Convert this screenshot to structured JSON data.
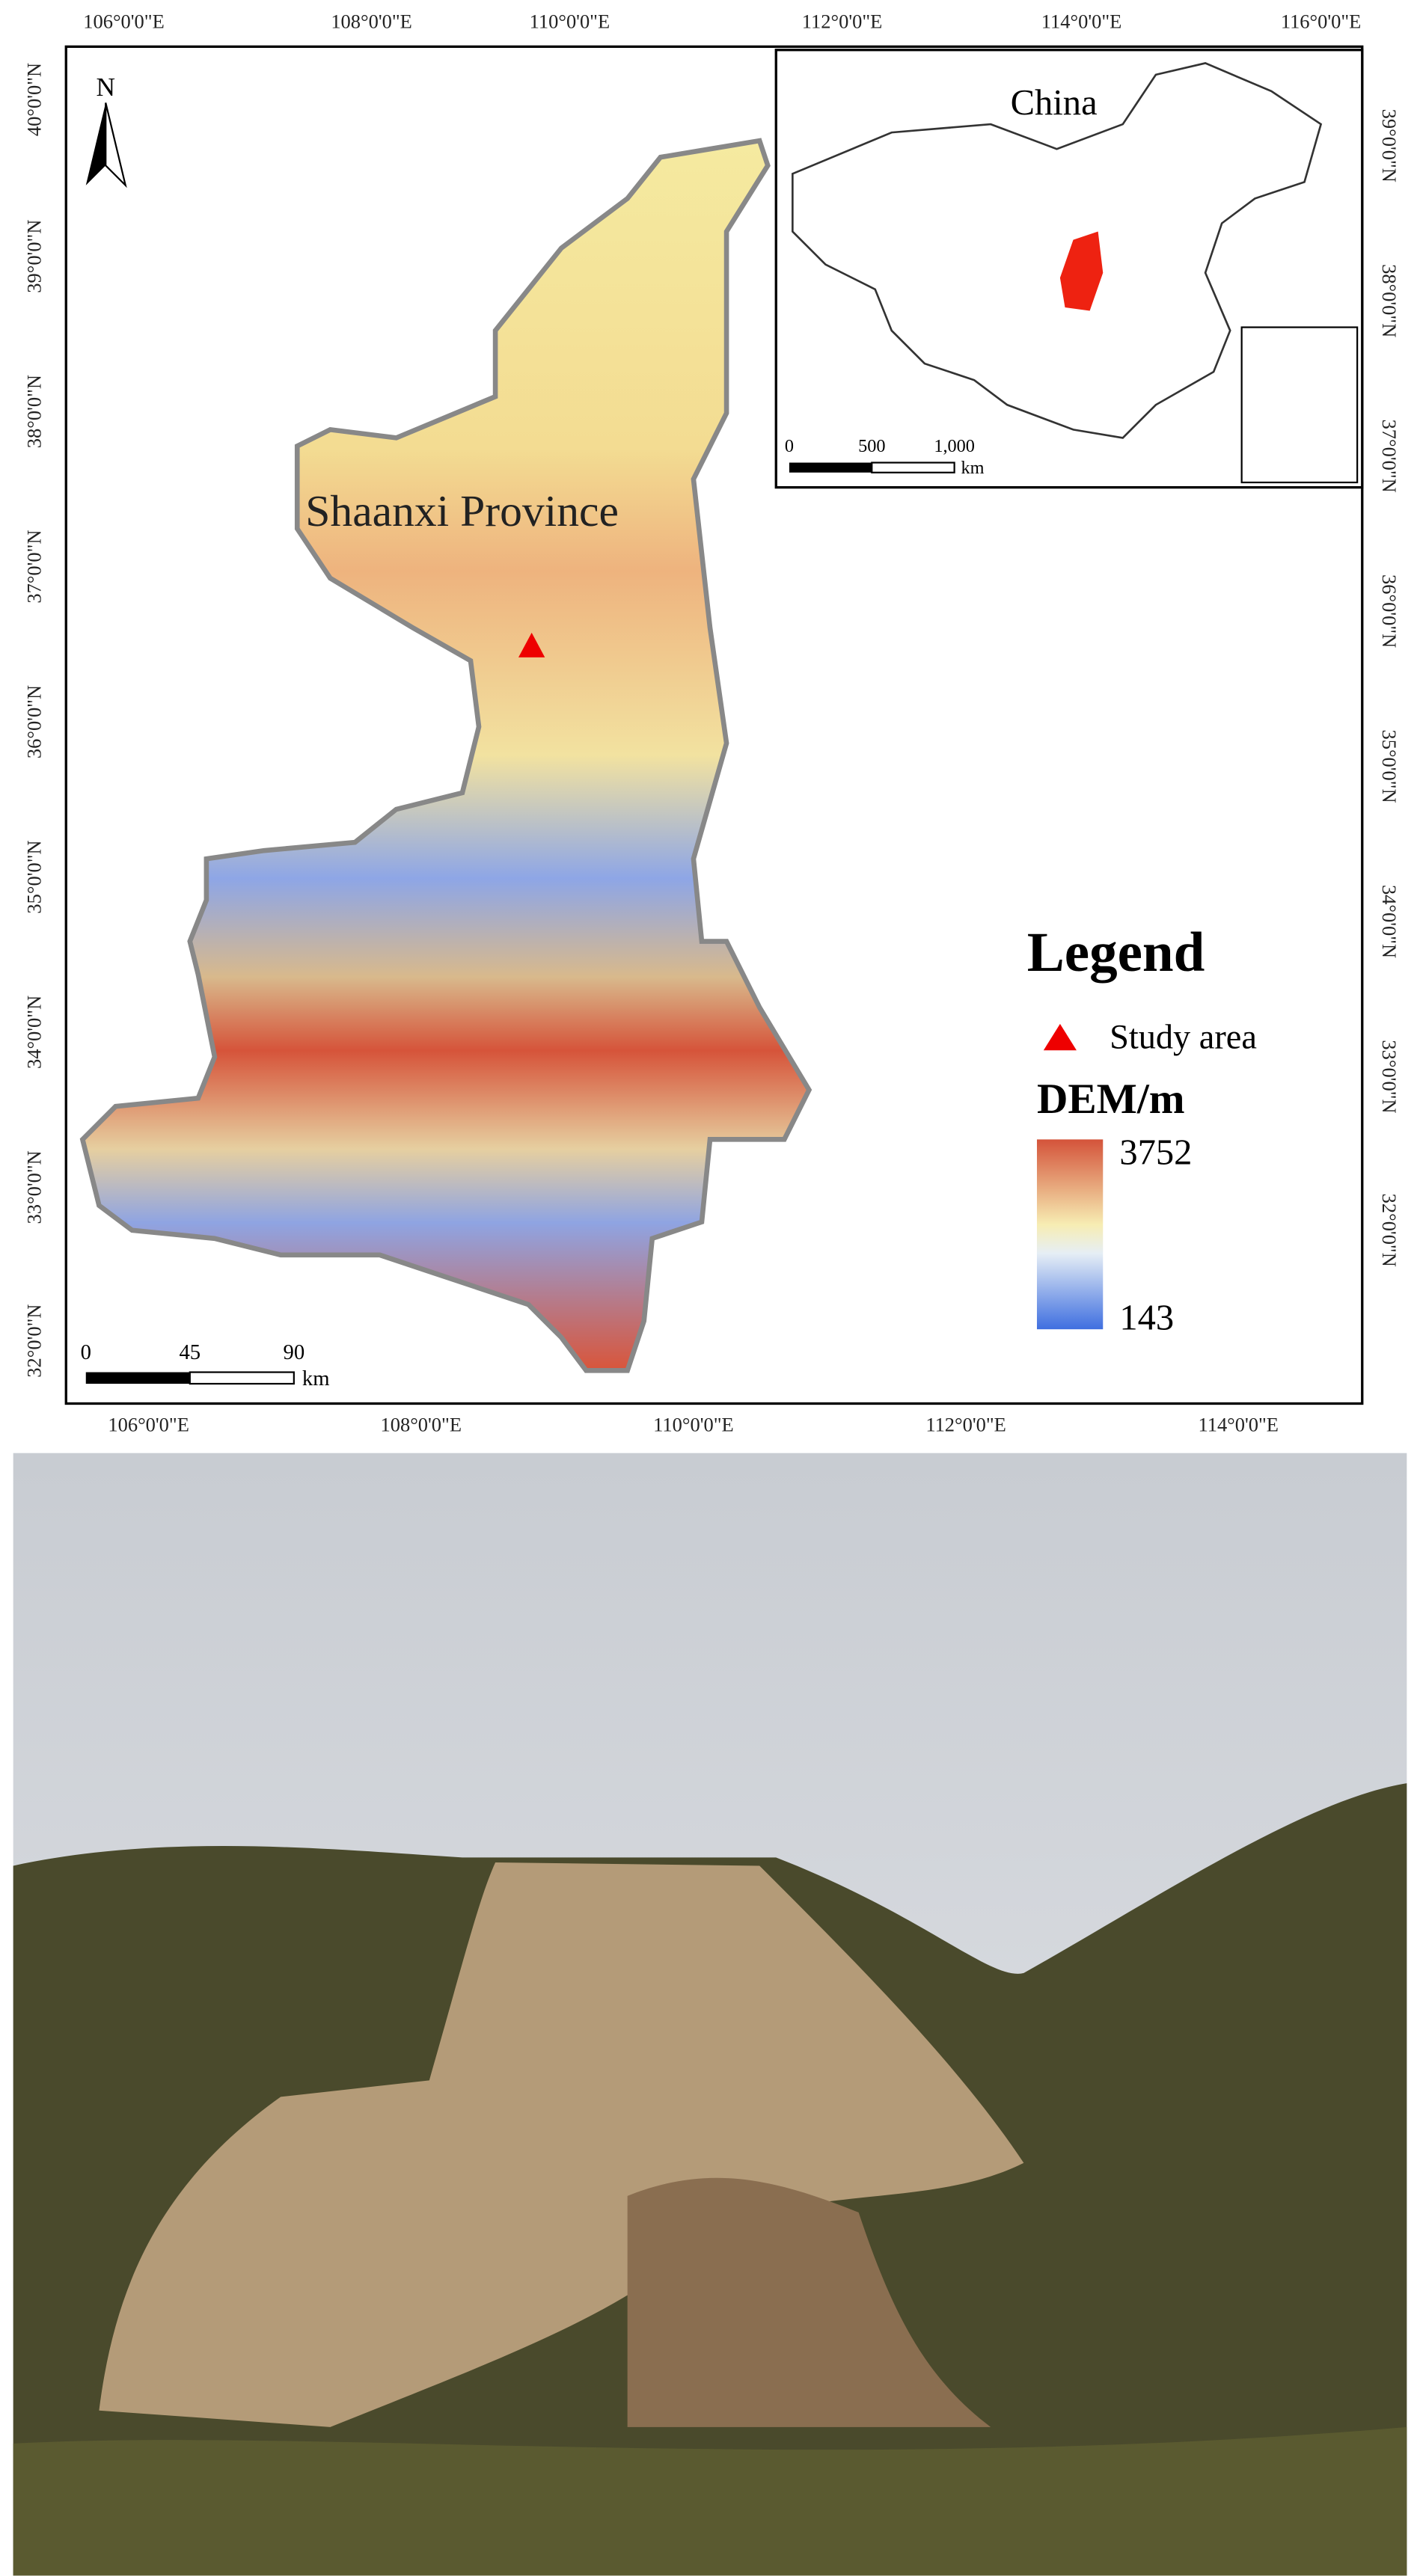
{
  "map": {
    "top_labels": [
      "106°0'0\"E",
      "108°0'0\"E",
      "110°0'0\"E",
      "112°0'0\"E",
      "114°0'0\"E",
      "116°0'0\"E"
    ],
    "bottom_labels": [
      "106°0'0\"E",
      "108°0'0\"E",
      "110°0'0\"E",
      "112°0'0\"E",
      "114°0'0\"E"
    ],
    "left_labels": [
      "40°0'0\"N",
      "39°0'0\"N",
      "38°0'0\"N",
      "37°0'0\"N",
      "36°0'0\"N",
      "35°0'0\"N",
      "34°0'0\"N",
      "33°0'0\"N",
      "32°0'0\"N"
    ],
    "right_labels": [
      "39°0'0\"N",
      "38°0'0\"N",
      "37°0'0\"N",
      "36°0'0\"N",
      "35°0'0\"N",
      "34°0'0\"N",
      "33°0'0\"N",
      "32°0'0\"N"
    ],
    "north": "N",
    "region_label": "Shaanxi Province",
    "scale_bar": {
      "ticks": [
        "0",
        "45",
        "90"
      ],
      "unit": "km"
    },
    "inset": {
      "label": "China",
      "scale_bar": {
        "ticks": [
          "0",
          "500",
          "1,000"
        ],
        "unit": "km"
      }
    },
    "legend": {
      "title": "Legend",
      "items": [
        "Study area"
      ],
      "dem_title": "DEM/m",
      "dem_max": "3752",
      "dem_min": "143"
    }
  }
}
